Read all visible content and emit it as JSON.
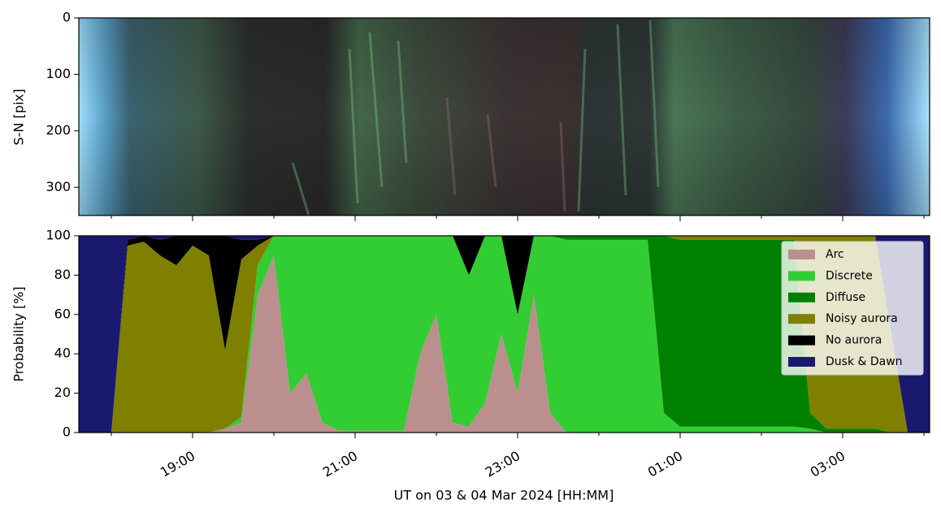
{
  "chart_data": [
    {
      "type": "image",
      "ylabel": "S-N [pix]",
      "ylim": [
        350,
        0
      ],
      "yticks": [
        0,
        100,
        200,
        300
      ]
    },
    {
      "type": "area",
      "ylabel": "Probability [%]",
      "xlabel": "UT on 03 & 04 Mar 2024 [HH:MM]",
      "xlim": [
        17.6,
        28.07
      ],
      "xticks": [
        {
          "value": 19,
          "label": "19:00"
        },
        {
          "value": 21,
          "label": "21:00"
        },
        {
          "value": 23,
          "label": "23:00"
        },
        {
          "value": 25,
          "label": "01:00"
        },
        {
          "value": 27,
          "label": "03:00"
        }
      ],
      "xminorticks": [
        18,
        20,
        22,
        24,
        26,
        28
      ],
      "ylim": [
        0,
        100
      ],
      "yticks": [
        0,
        20,
        40,
        60,
        80,
        100
      ],
      "stacked": true,
      "legend": "upper right",
      "x": [
        17.6,
        17.8,
        18.0,
        18.2,
        18.4,
        18.6,
        18.8,
        19.0,
        19.2,
        19.4,
        19.6,
        19.8,
        20.0,
        20.2,
        20.4,
        20.6,
        20.8,
        21.0,
        21.2,
        21.4,
        21.6,
        21.8,
        22.0,
        22.2,
        22.4,
        22.6,
        22.8,
        23.0,
        23.2,
        23.4,
        23.6,
        23.8,
        24.0,
        24.2,
        24.4,
        24.6,
        24.8,
        25.0,
        25.2,
        25.4,
        25.6,
        25.8,
        26.0,
        26.2,
        26.4,
        26.6,
        26.8,
        27.0,
        27.2,
        27.4,
        27.6,
        27.8,
        28.0,
        28.07
      ],
      "series": [
        {
          "name": "Arc",
          "color": "#bc8f8f",
          "values": [
            0,
            0,
            0,
            0,
            0,
            0,
            0,
            0,
            0,
            2,
            5,
            70,
            90,
            20,
            30,
            5,
            1,
            1,
            1,
            1,
            1,
            40,
            60,
            5,
            3,
            15,
            50,
            20,
            70,
            10,
            0,
            0,
            0,
            0,
            0,
            0,
            0,
            0,
            0,
            0,
            0,
            0,
            0,
            0,
            0,
            0,
            0,
            0,
            0,
            0,
            0,
            0,
            0,
            0
          ]
        },
        {
          "name": "Discrete",
          "color": "#32cd32",
          "values": [
            0,
            0,
            0,
            0,
            0,
            0,
            0,
            0,
            0,
            0,
            3,
            15,
            10,
            80,
            70,
            95,
            99,
            99,
            99,
            99,
            99,
            60,
            40,
            95,
            77,
            85,
            50,
            40,
            30,
            90,
            98,
            98,
            98,
            98,
            98,
            98,
            10,
            3,
            3,
            3,
            3,
            3,
            3,
            3,
            3,
            2,
            0,
            0,
            0,
            0,
            0,
            0,
            0,
            0
          ]
        },
        {
          "name": "Diffuse",
          "color": "#008000",
          "values": [
            0,
            0,
            0,
            0,
            0,
            0,
            0,
            0,
            0,
            0,
            0,
            0,
            0,
            0,
            0,
            0,
            0,
            0,
            0,
            0,
            0,
            0,
            0,
            0,
            0,
            0,
            0,
            0,
            0,
            0,
            2,
            2,
            2,
            2,
            2,
            2,
            90,
            95,
            95,
            95,
            95,
            95,
            95,
            95,
            95,
            8,
            2,
            2,
            2,
            2,
            0,
            0,
            0,
            0
          ]
        },
        {
          "name": "Noisy aurora",
          "color": "#808000",
          "values": [
            0,
            0,
            0,
            95,
            97,
            90,
            85,
            95,
            90,
            40,
            80,
            10,
            0,
            0,
            0,
            0,
            0,
            0,
            0,
            0,
            0,
            0,
            0,
            0,
            0,
            0,
            0,
            0,
            0,
            0,
            0,
            0,
            0,
            0,
            0,
            0,
            0,
            2,
            2,
            2,
            2,
            2,
            2,
            2,
            2,
            90,
            98,
            98,
            98,
            98,
            50,
            0,
            0,
            0
          ]
        },
        {
          "name": "No aurora",
          "color": "#000000",
          "values": [
            0,
            0,
            0,
            3,
            3,
            8,
            15,
            5,
            10,
            58,
            10,
            3,
            0,
            0,
            0,
            0,
            0,
            0,
            0,
            0,
            0,
            0,
            0,
            0,
            20,
            0,
            0,
            40,
            0,
            0,
            0,
            0,
            0,
            0,
            0,
            0,
            0,
            0,
            0,
            0,
            0,
            0,
            0,
            0,
            0,
            0,
            0,
            0,
            0,
            0,
            0,
            0,
            0,
            0
          ]
        },
        {
          "name": "Dusk & Dawn",
          "color": "#191970",
          "values": [
            100,
            100,
            100,
            2,
            0,
            2,
            0,
            0,
            0,
            0,
            2,
            2,
            0,
            0,
            0,
            0,
            0,
            0,
            0,
            0,
            0,
            0,
            0,
            0,
            0,
            0,
            0,
            0,
            0,
            0,
            0,
            0,
            0,
            0,
            0,
            0,
            0,
            0,
            0,
            0,
            0,
            0,
            0,
            0,
            0,
            0,
            0,
            0,
            0,
            0,
            50,
            100,
            100,
            100
          ]
        }
      ]
    }
  ]
}
